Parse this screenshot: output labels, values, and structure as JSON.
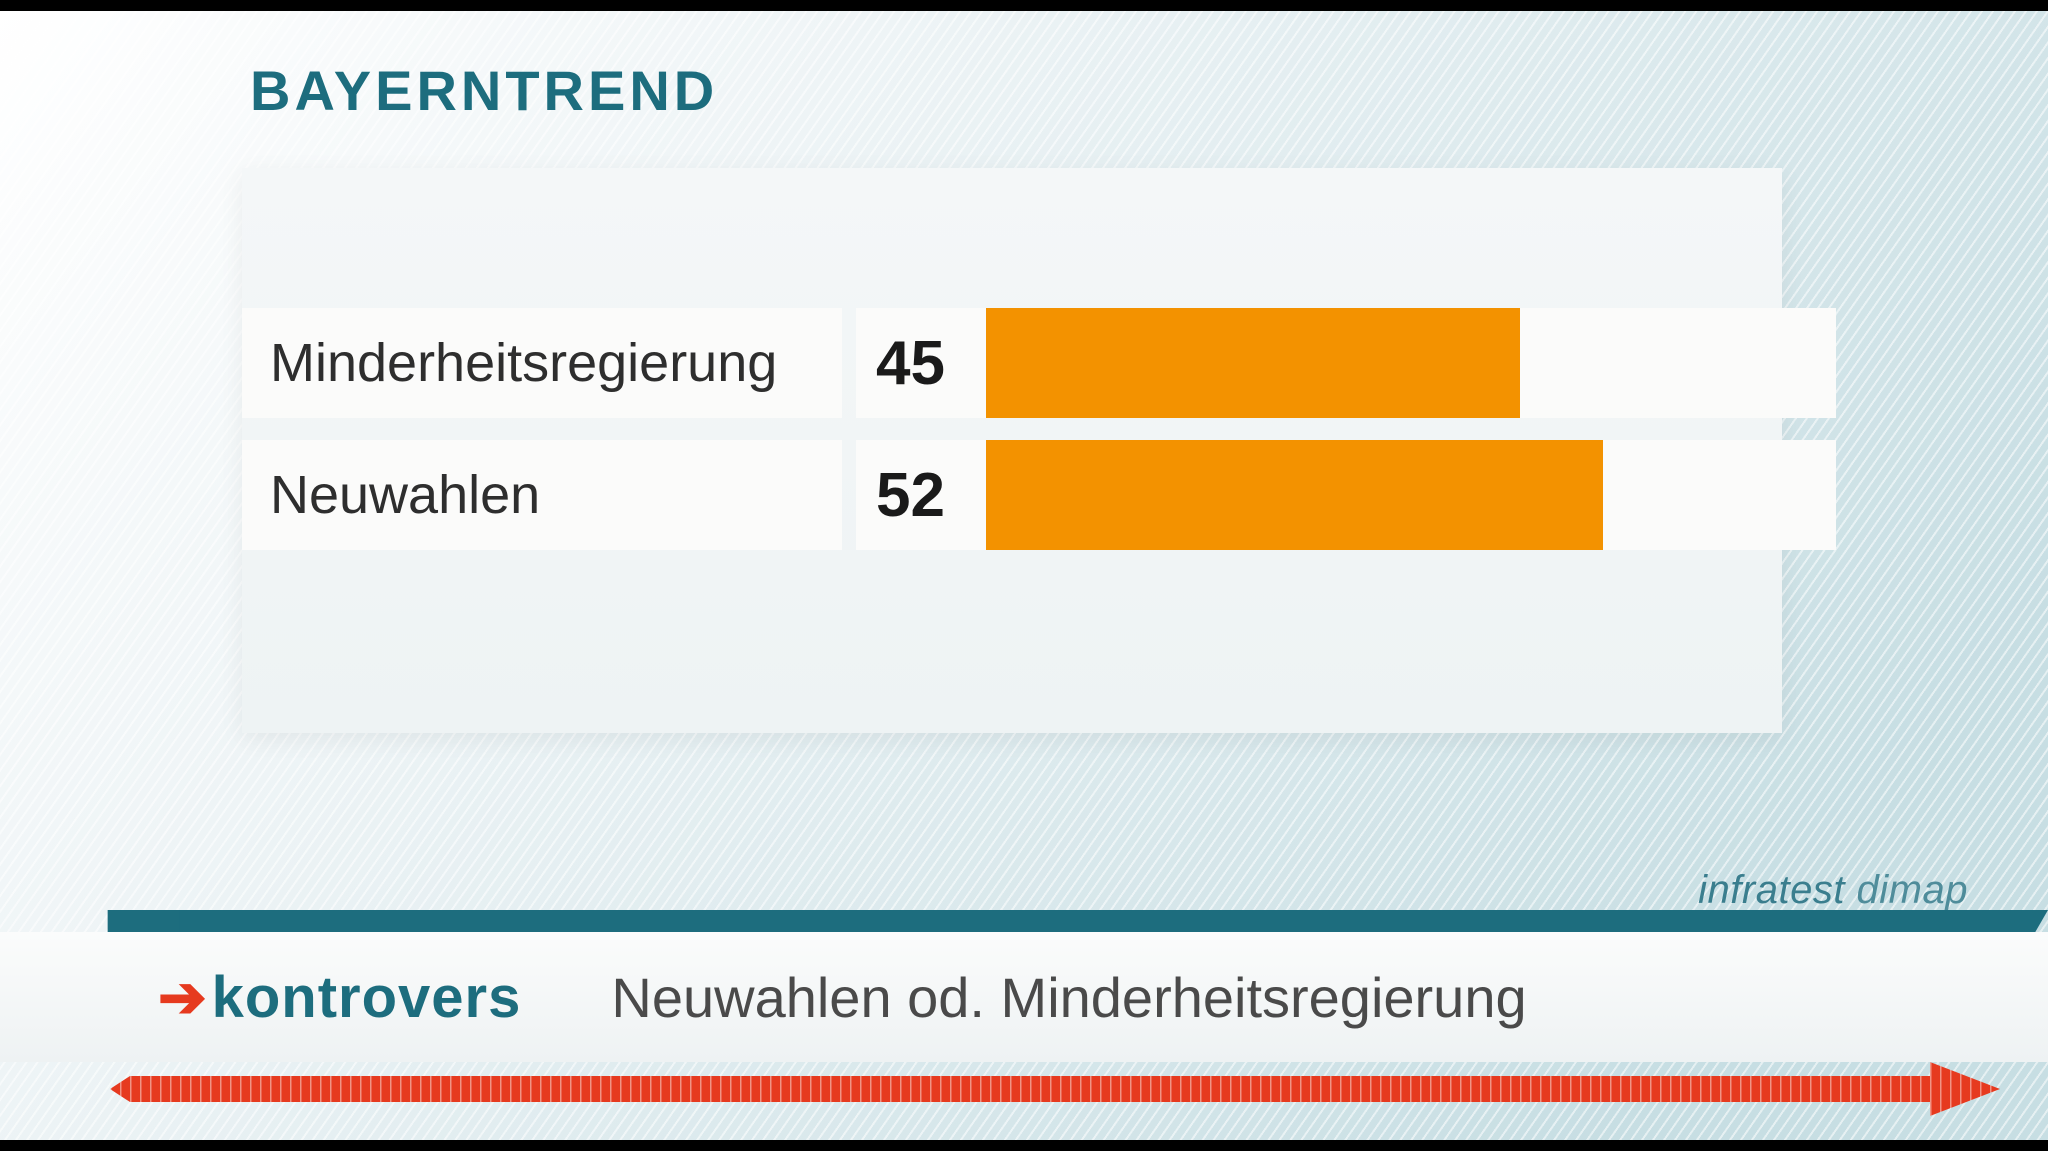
{
  "title": "BAYERNTREND",
  "chart": {
    "type": "bar",
    "orientation": "horizontal",
    "value_max": 70,
    "bar_color": "#f39200",
    "row_bg": "#fbfbfa",
    "label_color": "#2e2e2e",
    "value_color": "#1a1a1a",
    "label_fontsize": 54,
    "value_fontsize": 62,
    "rows": [
      {
        "label": "Minderheitsregierung",
        "value": 45
      },
      {
        "label": "Neuwahlen",
        "value": 52
      }
    ]
  },
  "colors": {
    "title": "#1d6d7e",
    "teal": "#1d6d7e",
    "red": "#e63a1f",
    "source": "#3a7e8e",
    "caption": "#4a4a4a",
    "panel_bg_top": "#f4f7f8",
    "panel_bg_bottom": "#eef3f4",
    "page_bg_light": "#ffffff",
    "page_bg_dark": "#c7dee3"
  },
  "source": {
    "prefix": "infratest",
    "suffix": " dimap"
  },
  "lower_third": {
    "show_logo": "kontrovers",
    "caption": "Neuwahlen od. Minderheitsregierung"
  }
}
